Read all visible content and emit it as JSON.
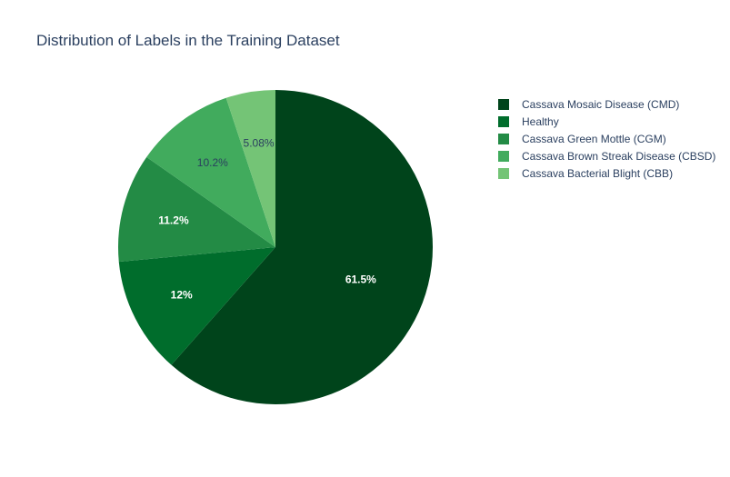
{
  "chart_data": {
    "type": "pie",
    "title": "Distribution of Labels in the Training Dataset",
    "slices": [
      {
        "label": "Cassava Mosaic Disease (CMD)",
        "percent": 61.5,
        "percent_text": "61.5%",
        "color": "#00441b",
        "label_color": "#ffffff"
      },
      {
        "label": "Healthy",
        "percent": 12.0,
        "percent_text": "12%",
        "color": "#006d2c",
        "label_color": "#ffffff"
      },
      {
        "label": "Cassava Green Mottle (CGM)",
        "percent": 11.2,
        "percent_text": "11.2%",
        "color": "#238b45",
        "label_color": "#ffffff"
      },
      {
        "label": "Cassava Brown Streak Disease (CBSD)",
        "percent": 10.2,
        "percent_text": "10.2%",
        "color": "#41ab5d",
        "label_color": "#2a3f5f"
      },
      {
        "label": "Cassava Bacterial Blight (CBB)",
        "percent": 5.08,
        "percent_text": "5.08%",
        "color": "#74c476",
        "label_color": "#2a3f5f"
      }
    ],
    "direction": "clockwise",
    "start": "top",
    "legend_placement": "top-right"
  }
}
